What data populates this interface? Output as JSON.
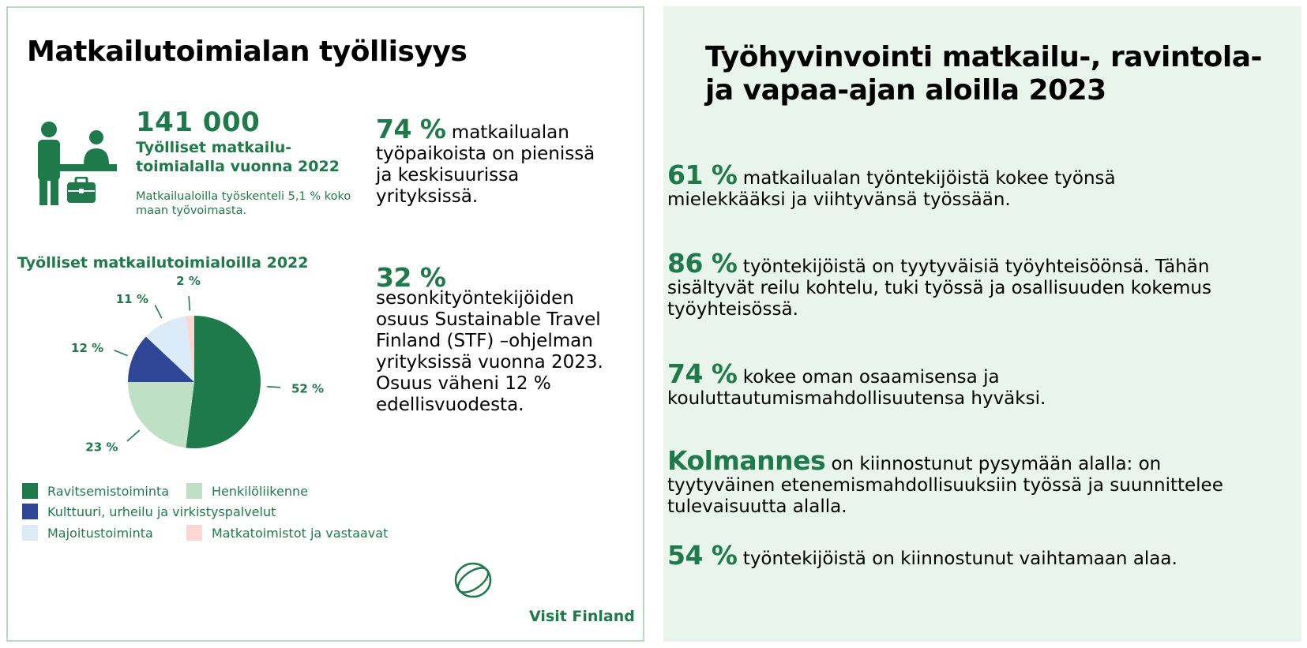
{
  "left": {
    "title": "Matkailutoimialan työllisyys",
    "employment": {
      "number": "141 000",
      "label": "Työlliset matkailu-toimialalla vuonna 2022",
      "sub": "Matkailualoilla työskenteli 5,1 % koko maan työvoimasta."
    },
    "stat1": {
      "pct": "74 %",
      "text": " matkailualan työpaikoista on pienissä ja keskisuurissa yrityksissä."
    },
    "stat2": {
      "pct": "32 %",
      "text": "sesonkityöntekijöiden osuus Sustainable Travel Finland (STF) –ohjelman yrityksissä vuonna 2023. Osuus väheni 12 % edellisvuodesta."
    },
    "logo": "Visit Finland",
    "icons": [
      "worker-at-desk-icon",
      "briefcase-icon",
      "visit-finland-logo-icon"
    ]
  },
  "chart_data": {
    "type": "pie",
    "title": "Työlliset matkailutoimialoilla 2022",
    "categories": [
      "Ravitsemistoiminta",
      "Henkilöliikenne",
      "Kulttuuri, urheilu ja virkistyspalvelut",
      "Majoitustoiminta",
      "Matkatoimistot ja vastaavat"
    ],
    "values": [
      52,
      23,
      12,
      11,
      2
    ],
    "labels": [
      "52 %",
      "23 %",
      "12 %",
      "11 %",
      "2 %"
    ],
    "colors": [
      "#1f7a4b",
      "#bfe0c4",
      "#2f4696",
      "#dbecf8",
      "#fbd6d2"
    ],
    "legend_position": "bottom"
  },
  "right": {
    "title": "Työhyvinvointi matkailu-, ravintola- ja vapaa-ajan aloilla 2023",
    "stats": [
      {
        "pct": "61 %",
        "text": " matkailualan työntekijöistä kokee työnsä mielekkääksi ja viihtyvänsä työssään."
      },
      {
        "pct": "86 %",
        "text": " työntekijöistä on tyytyväisiä työyhteisöönsä. Tähän sisältyvät reilu kohtelu, tuki työssä ja osallisuuden kokemus työyhteisössä."
      },
      {
        "pct": "74 %",
        "text": " kokee oman osaamisensa ja kouluttautumismahdollisuutensa hyväksi."
      },
      {
        "pct": "Kolmannes",
        "text": " on kiinnostunut pysymään alalla: on tyytyväinen etenemismahdollisuuksiin työssä ja suunnittelee tulevaisuutta alalla."
      },
      {
        "pct": "54 %",
        "text": " työntekijöistä on kiinnostunut vaihtamaan alaa."
      }
    ]
  }
}
